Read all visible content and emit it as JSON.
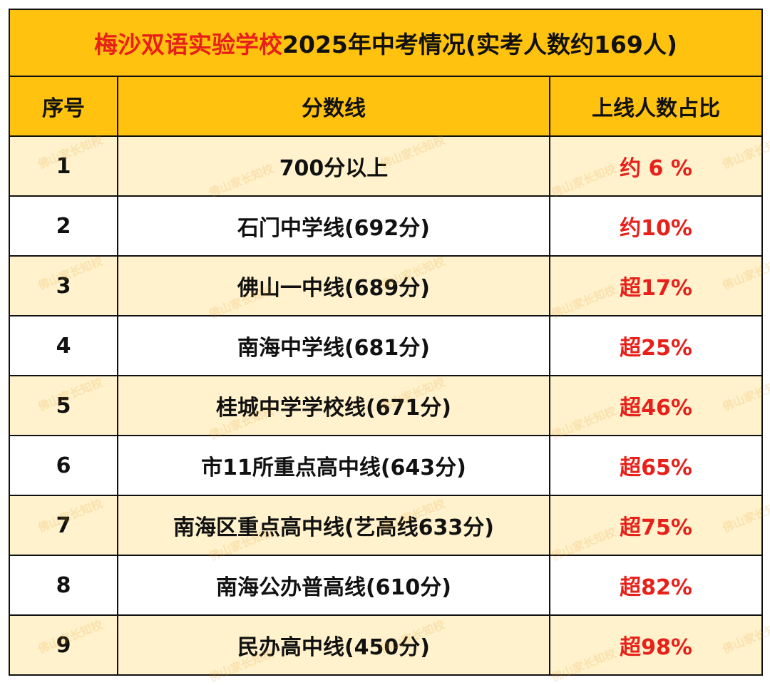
{
  "title": {
    "school": "梅沙双语实验学校",
    "rest": "2025年中考情况(实考人数约169人)"
  },
  "table": {
    "header": [
      "序号",
      "分数线",
      "上线人数占比"
    ],
    "rows": [
      [
        "1",
        "700分以上",
        "约 6 %"
      ],
      [
        "2",
        "石门中学线(692分)",
        "约10%"
      ],
      [
        "3",
        "佛山一中线(689分)",
        "超17%"
      ],
      [
        "4",
        "南海中学线(681分)",
        "超25%"
      ],
      [
        "5",
        "桂城中学学校线(671分)",
        "超46%"
      ],
      [
        "6",
        "市11所重点高中线(643分)",
        "超65%"
      ],
      [
        "7",
        "南海区重点高中线(艺高线633分)",
        "超75%"
      ],
      [
        "8",
        "南海公办普高线(610分)",
        "超82%"
      ],
      [
        "9",
        "民办高中线(450分)",
        "超98%"
      ]
    ]
  },
  "watermark": "佛山家长知校"
}
